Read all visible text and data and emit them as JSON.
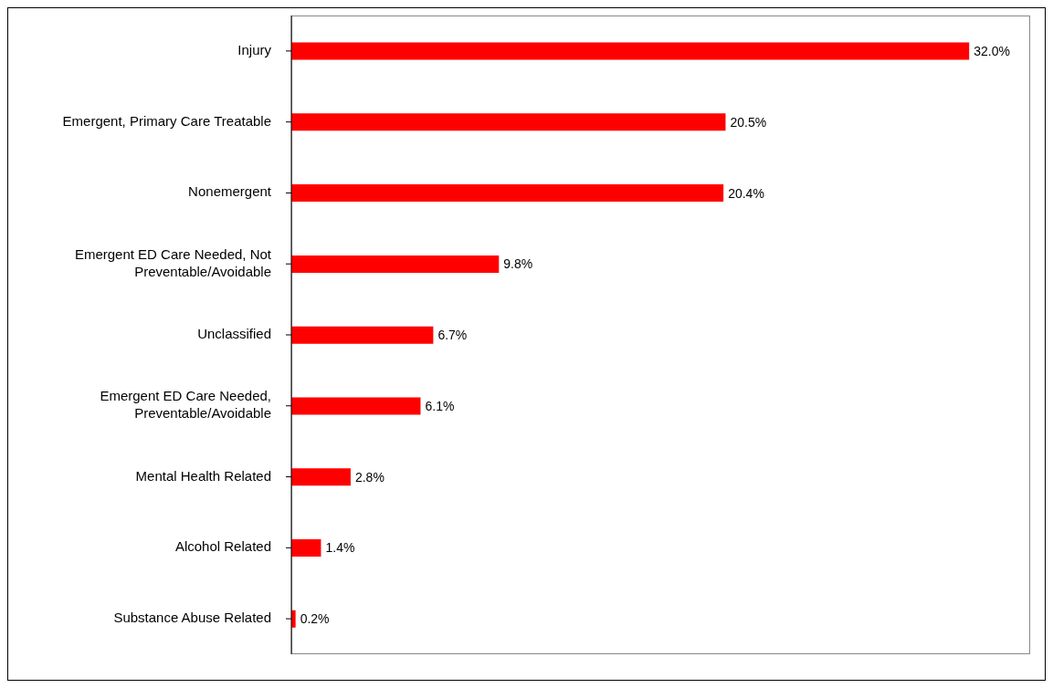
{
  "chart_data": {
    "type": "bar",
    "orientation": "horizontal",
    "categories": [
      "Injury",
      "Emergent, Primary Care Treatable",
      "Nonemergent",
      "Emergent ED Care Needed, Not Preventable/Avoidable",
      "Unclassified",
      "Emergent ED Care Needed, Preventable/Avoidable",
      "Mental Health Related",
      "Alcohol Related",
      "Substance Abuse Related"
    ],
    "values": [
      32.0,
      20.5,
      20.4,
      9.8,
      6.7,
      6.1,
      2.8,
      1.4,
      0.2
    ],
    "value_labels": [
      "32.0%",
      "20.5%",
      "20.4%",
      "9.8%",
      "6.7%",
      "6.1%",
      "2.8%",
      "1.4%",
      "0.2%"
    ],
    "color": "#ff0000",
    "legend": false,
    "grid": false
  }
}
